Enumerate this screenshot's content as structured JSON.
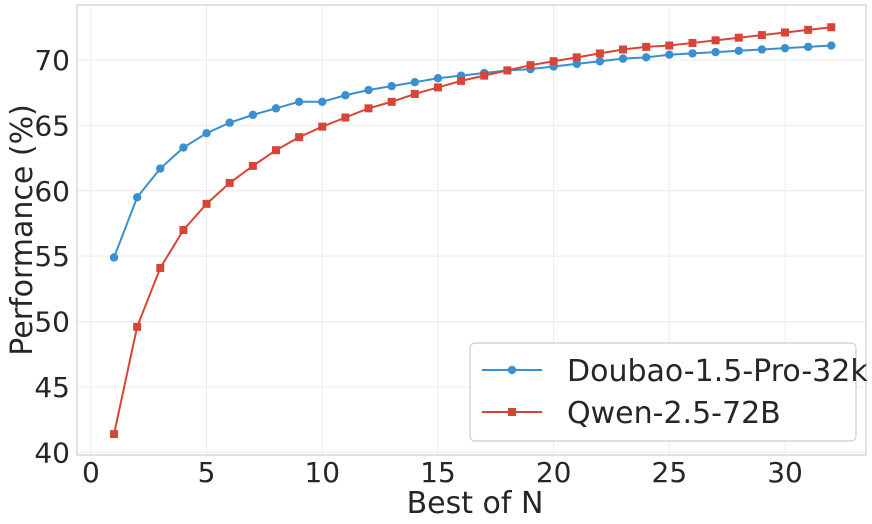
{
  "chart_data": {
    "type": "line",
    "xlabel": "Best of N",
    "ylabel": "Performance (%)",
    "xlim": [
      -0.6,
      33.5
    ],
    "ylim": [
      39.8,
      74.2
    ],
    "xticks": [
      0,
      5,
      10,
      15,
      20,
      25,
      30
    ],
    "yticks": [
      40,
      45,
      50,
      55,
      60,
      65,
      70
    ],
    "grid": true,
    "legend_position": "bottom-right",
    "x": [
      1,
      2,
      3,
      4,
      5,
      6,
      7,
      8,
      9,
      10,
      11,
      12,
      13,
      14,
      15,
      16,
      17,
      18,
      19,
      20,
      21,
      22,
      23,
      24,
      25,
      26,
      27,
      28,
      29,
      30,
      31,
      32
    ],
    "series": [
      {
        "name": "Doubao-1.5-Pro-32k",
        "color": "#3a8fd0",
        "marker": "circle",
        "values": [
          54.9,
          59.5,
          61.7,
          63.3,
          64.4,
          65.2,
          65.8,
          66.3,
          66.8,
          66.8,
          67.3,
          67.7,
          68.0,
          68.3,
          68.6,
          68.8,
          69.0,
          69.2,
          69.3,
          69.5,
          69.7,
          69.9,
          70.1,
          70.2,
          70.4,
          70.5,
          70.6,
          70.7,
          70.8,
          70.9,
          71.0,
          71.1
        ]
      },
      {
        "name": "Qwen-2.5-72B",
        "color": "#d64537",
        "marker": "square",
        "values": [
          41.4,
          49.6,
          54.1,
          57.0,
          59.0,
          60.6,
          61.9,
          63.1,
          64.1,
          64.9,
          65.6,
          66.3,
          66.8,
          67.4,
          67.9,
          68.4,
          68.8,
          69.2,
          69.6,
          69.9,
          70.2,
          70.5,
          70.8,
          71.0,
          71.1,
          71.3,
          71.5,
          71.7,
          71.9,
          72.1,
          72.3,
          72.5
        ]
      }
    ]
  }
}
